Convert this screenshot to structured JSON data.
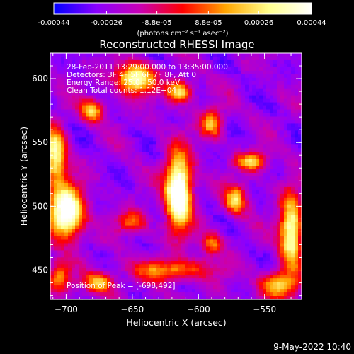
{
  "colorbar": {
    "tick_labels": [
      "-0.00044",
      "-0.00026",
      "-8.8e-05",
      "8.8e-05",
      "0.00026",
      "0.00044"
    ],
    "unit_label": "(photons cm⁻² s⁻¹ asec⁻²)",
    "range": [
      -0.00044,
      0.00044
    ],
    "colormap": [
      "#0000ff",
      "#8a00ff",
      "#c800b4",
      "#ff0000",
      "#ffa500",
      "#ffff8c",
      "#ffffff"
    ]
  },
  "chart_data": {
    "type": "heatmap",
    "title": "Reconstructed RHESSI Image",
    "xlabel": "Heliocentric X (arcsec)",
    "ylabel": "Heliocentric Y (arcsec)",
    "xlim": [
      -712,
      -522
    ],
    "ylim": [
      427,
      620
    ],
    "xticks": [
      -700,
      -650,
      -600,
      -550
    ],
    "yticks": [
      450,
      500,
      550,
      600
    ],
    "annotations": [
      "28-Feb-2011 13:29:00.000 to 13:35:00.000",
      "Detectors: 3F 4F 5F 6F 7F 8F, Att 0",
      "Energy Range: 25.0 - 50.0 keV",
      "Clean      Total counts: 1.12E+04"
    ],
    "peak_label": "Position of Peak = [-698,492]",
    "sources": [
      {
        "x": -615,
        "y": 512,
        "sx": 7,
        "sy": 20,
        "amp": 1.0
      },
      {
        "x": -700,
        "y": 495,
        "sx": 9,
        "sy": 14,
        "amp": 0.95
      },
      {
        "x": -708,
        "y": 540,
        "sx": 6,
        "sy": 15,
        "amp": 0.7
      },
      {
        "x": -648,
        "y": 600,
        "sx": 10,
        "sy": 8,
        "amp": 0.75
      },
      {
        "x": -680,
        "y": 575,
        "sx": 6,
        "sy": 6,
        "amp": 0.55
      },
      {
        "x": -614,
        "y": 590,
        "sx": 7,
        "sy": 6,
        "amp": 0.6
      },
      {
        "x": -590,
        "y": 565,
        "sx": 6,
        "sy": 8,
        "amp": 0.5
      },
      {
        "x": -572,
        "y": 505,
        "sx": 6,
        "sy": 8,
        "amp": 0.55
      },
      {
        "x": -560,
        "y": 535,
        "sx": 8,
        "sy": 5,
        "amp": 0.55
      },
      {
        "x": -530,
        "y": 480,
        "sx": 6,
        "sy": 20,
        "amp": 0.75
      },
      {
        "x": -540,
        "y": 438,
        "sx": 10,
        "sy": 7,
        "amp": 0.55
      },
      {
        "x": -620,
        "y": 450,
        "sx": 22,
        "sy": 6,
        "amp": 0.45
      },
      {
        "x": -675,
        "y": 440,
        "sx": 8,
        "sy": 6,
        "amp": 0.5
      },
      {
        "x": -705,
        "y": 445,
        "sx": 6,
        "sy": 8,
        "amp": 0.45
      },
      {
        "x": -650,
        "y": 488,
        "sx": 8,
        "sy": 6,
        "amp": 0.4
      },
      {
        "x": -590,
        "y": 470,
        "sx": 6,
        "sy": 6,
        "amp": 0.4
      }
    ]
  },
  "footer": {
    "timestamp": "9-May-2022 10:40"
  }
}
